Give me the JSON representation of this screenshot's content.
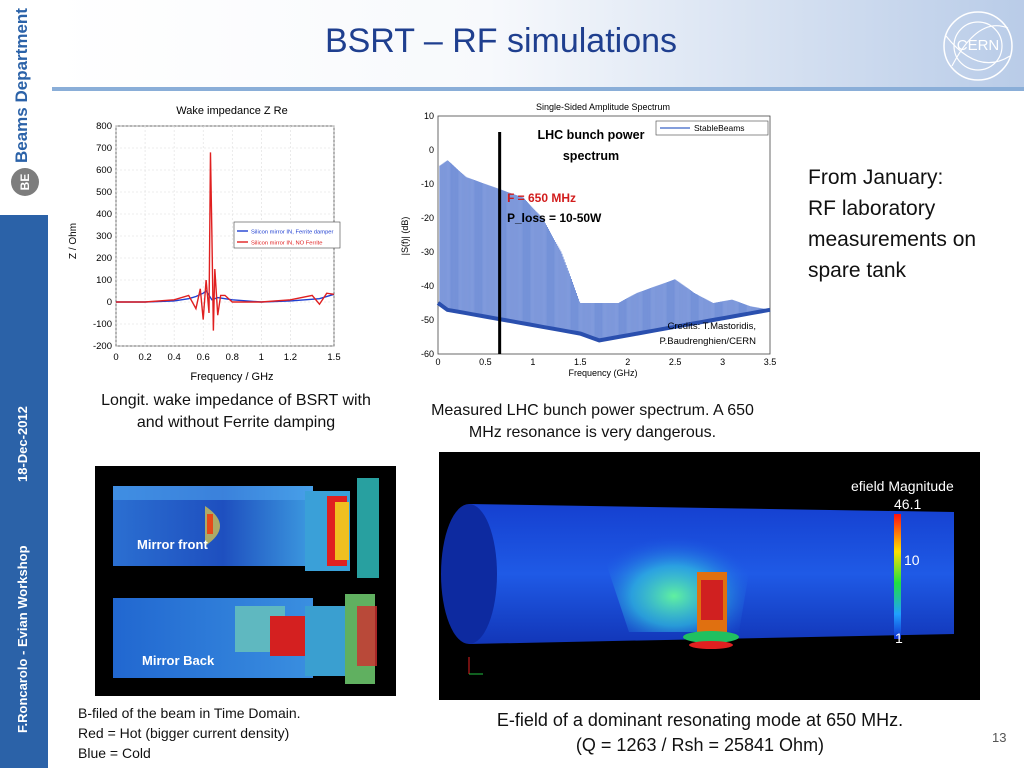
{
  "sidebar": {
    "department": "Beams Department",
    "logo": "BE",
    "date": "18-Dec-2012",
    "author_event": "F.Roncarolo - Evian Workshop"
  },
  "header": {
    "title": "BSRT – RF simulations",
    "logo": "CERN"
  },
  "wake_chart": {
    "caption": "Longit. wake impedance of BSRT with and without Ferrite damping",
    "chart_data": {
      "type": "line",
      "title": "Wake impedance Z Re",
      "xlabel": "Frequency / GHz",
      "ylabel": "Z / Ohm",
      "xlim": [
        0,
        1.5
      ],
      "ylim": [
        -200,
        800
      ],
      "xticks": [
        "0",
        "0.2",
        "0.4",
        "0.6",
        "0.8",
        "1",
        "1.2",
        "1.5"
      ],
      "yticks": [
        "800",
        "700",
        "600",
        "500",
        "400",
        "300",
        "200",
        "100",
        "0",
        "-100",
        "-200"
      ],
      "grid": true,
      "legend_position": "middle-right",
      "series": [
        {
          "name": "Silicon mirror IN, Ferrite damper",
          "color": "#1f3fd1",
          "x": [
            0,
            0.2,
            0.4,
            0.5,
            0.55,
            0.6,
            0.62,
            0.64,
            0.66,
            0.7,
            0.8,
            1.0,
            1.2,
            1.4,
            1.5
          ],
          "y": [
            0,
            0,
            5,
            15,
            25,
            40,
            50,
            30,
            10,
            20,
            10,
            0,
            5,
            15,
            35
          ]
        },
        {
          "name": "Silicon mirror IN, NO Ferrite",
          "color": "#e02020",
          "x": [
            0,
            0.2,
            0.4,
            0.5,
            0.55,
            0.58,
            0.6,
            0.62,
            0.64,
            0.65,
            0.66,
            0.67,
            0.68,
            0.7,
            0.72,
            0.75,
            0.8,
            1.0,
            1.2,
            1.35,
            1.4,
            1.45,
            1.5
          ],
          "y": [
            0,
            0,
            10,
            30,
            -30,
            60,
            -80,
            100,
            -50,
            680,
            300,
            -130,
            150,
            -60,
            30,
            30,
            0,
            0,
            10,
            30,
            -10,
            40,
            35
          ]
        }
      ]
    }
  },
  "spectrum_chart": {
    "caption": "Measured LHC bunch power spectrum. A 650 MHz resonance is very dangerous.",
    "annotation_title": "LHC bunch power spectrum",
    "annotation_freq": "F = 650 MHz",
    "annotation_loss": "P_loss = 10-50W",
    "credits": "Credits: T.Mastoridis, P.Baudrenghien/CERN",
    "chart_data": {
      "type": "line",
      "title": "Single-Sided Amplitude Spectrum",
      "xlabel": "Frequency (GHz)",
      "ylabel": "|S(f)| (dB)",
      "xlim": [
        0,
        3.5
      ],
      "ylim": [
        -60,
        10
      ],
      "xticks": [
        "0",
        "0.5",
        "1",
        "1.5",
        "2",
        "2.5",
        "3",
        "3.5"
      ],
      "yticks": [
        "10",
        "0",
        "-10",
        "-20",
        "-30",
        "-40",
        "-50",
        "-60"
      ],
      "legend_position": "top-right",
      "marker_x": 0.65,
      "series": [
        {
          "name": "StableBeams",
          "color": "#3a63c8",
          "envelope_x": [
            0,
            0.1,
            0.3,
            0.5,
            0.7,
            0.9,
            1.1,
            1.3,
            1.5,
            1.7,
            1.9,
            2.1,
            2.3,
            2.5,
            2.7,
            2.9,
            3.1,
            3.3,
            3.5
          ],
          "peak_y": [
            -5,
            -3,
            -8,
            -10,
            -12,
            -14,
            -20,
            -30,
            -45,
            -45,
            -45,
            -42,
            -40,
            -38,
            -42,
            -45,
            -44,
            -46,
            -47
          ],
          "floor_y": [
            -45,
            -47,
            -48,
            -49,
            -50,
            -51,
            -52,
            -53,
            -54,
            -56,
            -55,
            -54,
            -53,
            -52,
            -51,
            -50,
            -49,
            -48,
            -47
          ]
        }
      ]
    }
  },
  "note": {
    "lines": [
      "From January:",
      "RF laboratory",
      "measurements on",
      "spare tank"
    ]
  },
  "sim_left": {
    "label_front": "Mirror front",
    "label_back": "Mirror Back",
    "caption_lines": [
      "B-filed of the beam in Time Domain.",
      "Red = Hot (bigger current density)",
      "Blue = Cold"
    ]
  },
  "sim_right": {
    "legend_title": "efield Magnitude",
    "scale_max": "46.1",
    "scale_mid": "10",
    "scale_min": "1",
    "caption_line1": "E-field of a dominant resonating mode at 650 MHz.",
    "caption_line2": "(Q = 1263 / Rsh = 25841 Ohm)"
  },
  "page_number": "13",
  "colors": {
    "accent": "#1f3f8f",
    "sidebar": "#2b62a8"
  }
}
